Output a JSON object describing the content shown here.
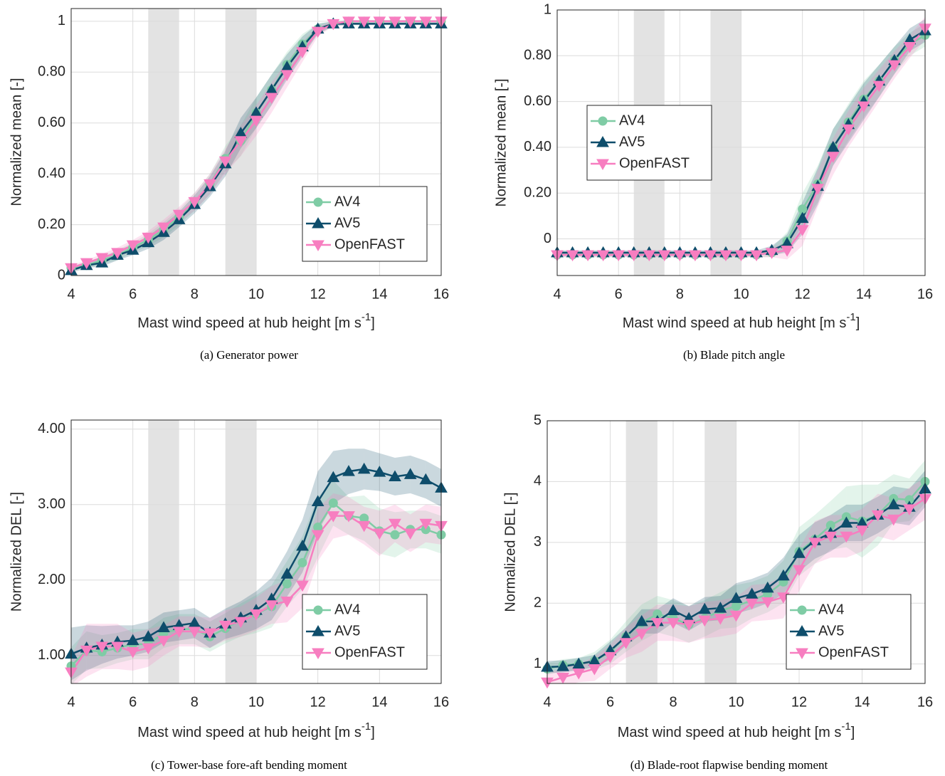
{
  "chart_data": [
    {
      "type": "line",
      "caption": "(a) Generator power",
      "y_label": "Normalized mean [-]",
      "x_label": {
        "text": "Mast wind speed at hub height [m s",
        "superscript": "-1",
        "suffix": "]"
      },
      "x": [
        4,
        4.5,
        5,
        5.5,
        6,
        6.5,
        7,
        7.5,
        8,
        8.5,
        9,
        9.5,
        10,
        10.5,
        11,
        11.5,
        12,
        12.5,
        13,
        13.5,
        14,
        14.5,
        15,
        15.5,
        16
      ],
      "xlim": [
        4,
        16
      ],
      "xticks": [
        4,
        6,
        8,
        10,
        12,
        14,
        16
      ],
      "ylim": [
        0,
        1.05
      ],
      "yticks": [
        0,
        {
          "value": 0.2,
          "label": "0.20"
        },
        {
          "value": 0.4,
          "label": "0.40"
        },
        {
          "value": 0.6,
          "label": "0.60"
        },
        {
          "value": 0.8,
          "label": "0.80"
        },
        1
      ],
      "grid": true,
      "legend": "lower right",
      "highlight_x": [
        [
          6.5,
          7.5
        ],
        [
          9,
          10
        ]
      ],
      "highlight_color": "#e3e3e3",
      "series": [
        {
          "name": "AV4",
          "color": "#7fcca5",
          "marker": "circle",
          "values": [
            0.03,
            0.04,
            0.06,
            0.08,
            0.11,
            0.14,
            0.18,
            0.23,
            0.29,
            0.36,
            0.46,
            0.53,
            0.64,
            0.73,
            0.83,
            0.91,
            0.97,
            0.99,
            1,
            1,
            1,
            1,
            1,
            1,
            1
          ],
          "errors": [
            0.01,
            0.01,
            0.015,
            0.02,
            0.02,
            0.025,
            0.03,
            0.03,
            0.035,
            0.04,
            0.05,
            0.06,
            0.06,
            0.06,
            0.05,
            0.04,
            0.02,
            0.01,
            0.005,
            0.005,
            0.005,
            0.005,
            0.005,
            0.005,
            0.005
          ]
        },
        {
          "name": "AV5",
          "color": "#0e4d6b",
          "marker": "triangle-up",
          "values": [
            0.02,
            0.04,
            0.05,
            0.08,
            0.1,
            0.13,
            0.17,
            0.22,
            0.28,
            0.35,
            0.44,
            0.56,
            0.64,
            0.73,
            0.82,
            0.9,
            0.97,
            0.99,
            0.99,
            0.99,
            0.99,
            0.99,
            0.99,
            0.99,
            0.99
          ],
          "errors": [
            0.01,
            0.01,
            0.015,
            0.02,
            0.02,
            0.025,
            0.03,
            0.03,
            0.035,
            0.04,
            0.05,
            0.06,
            0.06,
            0.06,
            0.05,
            0.04,
            0.02,
            0.01,
            0.005,
            0.005,
            0.005,
            0.005,
            0.005,
            0.005,
            0.005
          ]
        },
        {
          "name": "OpenFAST",
          "color": "#f77ec0",
          "marker": "triangle-down",
          "values": [
            0.03,
            0.05,
            0.07,
            0.09,
            0.12,
            0.15,
            0.19,
            0.24,
            0.29,
            0.36,
            0.45,
            0.53,
            0.61,
            0.7,
            0.79,
            0.88,
            0.96,
            0.99,
            1,
            1,
            1,
            1,
            1,
            1,
            1
          ],
          "errors": [
            0.01,
            0.01,
            0.015,
            0.02,
            0.02,
            0.025,
            0.03,
            0.03,
            0.035,
            0.04,
            0.05,
            0.06,
            0.06,
            0.06,
            0.05,
            0.04,
            0.02,
            0.01,
            0.005,
            0.005,
            0.005,
            0.005,
            0.005,
            0.005,
            0.005
          ]
        }
      ]
    },
    {
      "type": "line",
      "caption": "(b) Blade pitch angle",
      "y_label": "Normalized mean [-]",
      "x_label": {
        "text": "Mast wind speed at hub height [m s",
        "superscript": "-1",
        "suffix": "]"
      },
      "x": [
        4,
        4.5,
        5,
        5.5,
        6,
        6.5,
        7,
        7.5,
        8,
        8.5,
        9,
        9.5,
        10,
        10.5,
        11,
        11.5,
        12,
        12.5,
        13,
        13.5,
        14,
        14.5,
        15,
        15.5,
        16
      ],
      "xlim": [
        4,
        16
      ],
      "xticks": [
        4,
        6,
        8,
        10,
        12,
        14,
        16
      ],
      "ylim": [
        -0.16,
        1
      ],
      "yticks": [
        0,
        {
          "value": 0.2,
          "label": "0.20"
        },
        {
          "value": 0.4,
          "label": "0.40"
        },
        {
          "value": 0.6,
          "label": "0.60"
        },
        {
          "value": 0.8,
          "label": "0.80"
        },
        1
      ],
      "grid": true,
      "legend": "center left",
      "highlight_x": [
        [
          6.5,
          7.5
        ],
        [
          9,
          10
        ]
      ],
      "highlight_color": "#e3e3e3",
      "series": [
        {
          "name": "AV4",
          "color": "#7fcca5",
          "marker": "circle",
          "values": [
            -0.07,
            -0.07,
            -0.07,
            -0.07,
            -0.07,
            -0.07,
            -0.07,
            -0.07,
            -0.07,
            -0.07,
            -0.07,
            -0.07,
            -0.07,
            -0.07,
            -0.06,
            -0.01,
            0.13,
            0.24,
            0.4,
            0.51,
            0.61,
            0.69,
            0.78,
            0.85,
            0.89
          ],
          "errors": [
            0.01,
            0.01,
            0.01,
            0.01,
            0.01,
            0.01,
            0.01,
            0.01,
            0.01,
            0.01,
            0.01,
            0.01,
            0.01,
            0.01,
            0.02,
            0.04,
            0.07,
            0.08,
            0.08,
            0.08,
            0.08,
            0.07,
            0.06,
            0.05,
            0.05
          ]
        },
        {
          "name": "AV5",
          "color": "#0e4d6b",
          "marker": "triangle-up",
          "values": [
            -0.06,
            -0.06,
            -0.06,
            -0.06,
            -0.06,
            -0.06,
            -0.06,
            -0.06,
            -0.06,
            -0.06,
            -0.06,
            -0.06,
            -0.06,
            -0.06,
            -0.05,
            -0.02,
            0.09,
            0.23,
            0.4,
            0.5,
            0.6,
            0.69,
            0.78,
            0.87,
            0.91
          ],
          "errors": [
            0.01,
            0.01,
            0.01,
            0.01,
            0.01,
            0.01,
            0.01,
            0.01,
            0.01,
            0.01,
            0.01,
            0.01,
            0.01,
            0.01,
            0.02,
            0.04,
            0.07,
            0.08,
            0.08,
            0.08,
            0.08,
            0.07,
            0.06,
            0.05,
            0.05
          ]
        },
        {
          "name": "OpenFAST",
          "color": "#f77ec0",
          "marker": "triangle-down",
          "values": [
            -0.07,
            -0.07,
            -0.07,
            -0.07,
            -0.07,
            -0.07,
            -0.07,
            -0.07,
            -0.07,
            -0.07,
            -0.07,
            -0.07,
            -0.07,
            -0.07,
            -0.06,
            -0.05,
            0.04,
            0.22,
            0.36,
            0.48,
            0.58,
            0.67,
            0.76,
            0.84,
            0.92
          ],
          "errors": [
            0.01,
            0.01,
            0.01,
            0.01,
            0.01,
            0.01,
            0.01,
            0.01,
            0.01,
            0.01,
            0.01,
            0.01,
            0.01,
            0.01,
            0.02,
            0.04,
            0.07,
            0.08,
            0.08,
            0.08,
            0.08,
            0.07,
            0.06,
            0.05,
            0.05
          ]
        }
      ]
    },
    {
      "type": "line",
      "caption": "(c) Tower-base fore-aft bending moment",
      "y_label": "Normalized DEL [-]",
      "x_label": {
        "text": "Mast wind speed at hub height [m s",
        "superscript": "-1",
        "suffix": "]"
      },
      "x": [
        4,
        4.5,
        5,
        5.5,
        6,
        6.5,
        7,
        7.5,
        8,
        8.5,
        9,
        9.5,
        10,
        10.5,
        11,
        11.5,
        12,
        12.5,
        13,
        13.5,
        14,
        14.5,
        15,
        15.5,
        16
      ],
      "xlim": [
        4,
        16
      ],
      "xticks": [
        4,
        6,
        8,
        10,
        12,
        14,
        16
      ],
      "ylim": [
        0.63,
        4.12
      ],
      "yticks": [
        {
          "value": 1,
          "label": "1.00"
        },
        {
          "value": 2,
          "label": "2.00"
        },
        {
          "value": 3,
          "label": "3.00"
        },
        {
          "value": 4,
          "label": "4.00"
        }
      ],
      "grid": true,
      "legend": "lower right",
      "highlight_x": [
        [
          6.5,
          7.5
        ],
        [
          9,
          10
        ]
      ],
      "highlight_color": "#e3e3e3",
      "series": [
        {
          "name": "AV4",
          "color": "#7fcca5",
          "marker": "circle",
          "values": [
            0.86,
            1.07,
            1.05,
            1.1,
            1.15,
            1.15,
            1.3,
            1.35,
            1.35,
            1.25,
            1.36,
            1.47,
            1.55,
            1.65,
            1.95,
            2.23,
            2.7,
            3.02,
            2.85,
            2.82,
            2.65,
            2.6,
            2.67,
            2.67,
            2.6
          ],
          "errors": [
            0.25,
            0.25,
            0.22,
            0.2,
            0.2,
            0.2,
            0.2,
            0.2,
            0.2,
            0.2,
            0.2,
            0.22,
            0.25,
            0.28,
            0.3,
            0.35,
            0.4,
            0.3,
            0.25,
            0.3,
            0.3,
            0.3,
            0.25,
            0.25,
            0.25
          ]
        },
        {
          "name": "AV5",
          "color": "#0e4d6b",
          "marker": "triangle-up",
          "values": [
            1.02,
            1.1,
            1.14,
            1.18,
            1.2,
            1.25,
            1.37,
            1.4,
            1.43,
            1.3,
            1.42,
            1.5,
            1.6,
            1.75,
            2.08,
            2.45,
            3.04,
            3.36,
            3.44,
            3.47,
            3.43,
            3.37,
            3.4,
            3.33,
            3.22
          ],
          "errors": [
            0.35,
            0.3,
            0.25,
            0.22,
            0.2,
            0.2,
            0.2,
            0.2,
            0.2,
            0.2,
            0.2,
            0.22,
            0.25,
            0.28,
            0.3,
            0.35,
            0.4,
            0.35,
            0.3,
            0.27,
            0.25,
            0.25,
            0.25,
            0.25,
            0.25
          ]
        },
        {
          "name": "OpenFAST",
          "color": "#f77ec0",
          "marker": "triangle-down",
          "values": [
            0.78,
            1.07,
            1.12,
            1.12,
            1.05,
            1.1,
            1.2,
            1.32,
            1.32,
            1.3,
            1.4,
            1.45,
            1.55,
            1.67,
            1.72,
            1.93,
            2.6,
            2.85,
            2.85,
            2.72,
            2.62,
            2.75,
            2.62,
            2.75,
            2.72
          ],
          "errors": [
            0.2,
            0.35,
            0.3,
            0.3,
            0.25,
            0.25,
            0.2,
            0.2,
            0.2,
            0.2,
            0.2,
            0.2,
            0.22,
            0.25,
            0.28,
            0.3,
            0.35,
            0.3,
            0.25,
            0.25,
            0.3,
            0.25,
            0.25,
            0.25,
            0.25
          ]
        }
      ]
    },
    {
      "type": "line",
      "caption": "(d) Blade-root flapwise bending moment",
      "y_label": "Normalized DEL [-]",
      "x_label": {
        "text": "Mast wind speed at hub height [m s",
        "superscript": "-1",
        "suffix": "]"
      },
      "x": [
        4,
        4.5,
        5,
        5.5,
        6,
        6.5,
        7,
        7.5,
        8,
        8.5,
        9,
        9.5,
        10,
        10.5,
        11,
        11.5,
        12,
        12.5,
        13,
        13.5,
        14,
        14.5,
        15,
        15.5,
        16
      ],
      "xlim": [
        4,
        16
      ],
      "xticks": [
        4,
        6,
        8,
        10,
        12,
        14,
        16
      ],
      "ylim": [
        0.68,
        5
      ],
      "yticks": [
        1,
        2,
        3,
        4,
        5
      ],
      "grid": true,
      "legend": "lower right",
      "highlight_x": [
        [
          6.5,
          7.5
        ],
        [
          9,
          10
        ]
      ],
      "highlight_color": "#e3e3e3",
      "series": [
        {
          "name": "AV4",
          "color": "#7fcca5",
          "marker": "circle",
          "values": [
            0.92,
            0.98,
            1,
            1.05,
            1.2,
            1.45,
            1.68,
            1.82,
            1.75,
            1.65,
            1.75,
            1.88,
            1.95,
            2.05,
            2.15,
            2.35,
            2.85,
            3.05,
            3.28,
            3.42,
            3.35,
            3.45,
            3.72,
            3.7,
            4
          ],
          "errors": [
            0.1,
            0.1,
            0.1,
            0.15,
            0.2,
            0.25,
            0.3,
            0.3,
            0.3,
            0.3,
            0.3,
            0.3,
            0.35,
            0.3,
            0.3,
            0.35,
            0.4,
            0.4,
            0.4,
            0.5,
            0.6,
            0.5,
            0.4,
            0.35,
            0.35
          ]
        },
        {
          "name": "AV5",
          "color": "#0e4d6b",
          "marker": "triangle-up",
          "values": [
            0.95,
            0.96,
            1,
            1.05,
            1.22,
            1.45,
            1.7,
            1.7,
            1.88,
            1.75,
            1.9,
            1.92,
            2.08,
            2.15,
            2.25,
            2.45,
            2.82,
            3.03,
            3.15,
            3.32,
            3.32,
            3.45,
            3.62,
            3.58,
            3.88
          ],
          "errors": [
            0.1,
            0.1,
            0.1,
            0.1,
            0.15,
            0.15,
            0.2,
            0.2,
            0.2,
            0.2,
            0.2,
            0.2,
            0.25,
            0.25,
            0.25,
            0.3,
            0.3,
            0.3,
            0.3,
            0.3,
            0.3,
            0.3,
            0.3,
            0.3,
            0.3
          ]
        },
        {
          "name": "OpenFAST",
          "color": "#f77ec0",
          "marker": "triangle-down",
          "values": [
            0.7,
            0.78,
            0.85,
            0.92,
            1.12,
            1.35,
            1.5,
            1.68,
            1.68,
            1.65,
            1.72,
            1.75,
            1.8,
            2,
            2.02,
            2.1,
            2.55,
            3,
            3.1,
            3.1,
            3.2,
            3.45,
            3.38,
            3.55,
            3.72
          ],
          "errors": [
            0.15,
            0.15,
            0.15,
            0.2,
            0.2,
            0.25,
            0.3,
            0.3,
            0.3,
            0.3,
            0.3,
            0.3,
            0.3,
            0.3,
            0.3,
            0.35,
            0.35,
            0.35,
            0.35,
            0.35,
            0.35,
            0.35,
            0.35,
            0.35,
            0.35
          ]
        }
      ]
    }
  ]
}
